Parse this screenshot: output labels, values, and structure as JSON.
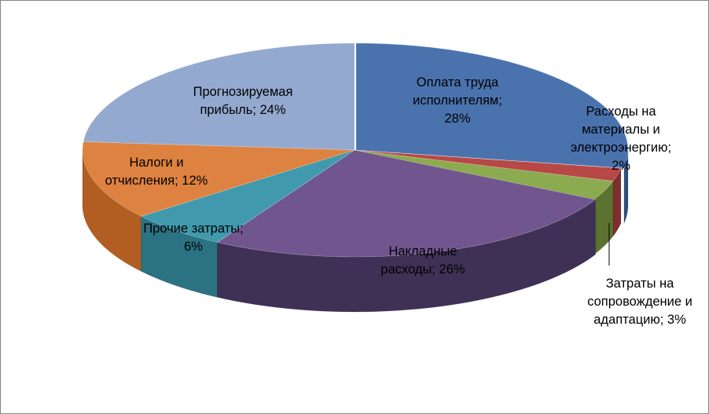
{
  "chart_data": {
    "type": "pie",
    "title": "",
    "style": "3d-exploded",
    "slices": [
      {
        "name": "Оплата труда исполнителям",
        "value": 28,
        "label_lines": [
          "Оплата труда",
          "исполнителям;",
          "28%"
        ],
        "color": "#4A73AE",
        "side": "#304E7C"
      },
      {
        "name": "Расходы на материалы и электроэнергию",
        "value": 2,
        "label_lines": [
          "Расходы на",
          "материалы и",
          "электроэнергию;",
          "2%"
        ],
        "color": "#B84845",
        "side": "#7E2E2C"
      },
      {
        "name": "Затраты на сопровождение и адаптацию",
        "value": 3,
        "label_lines": [
          "Затраты на",
          "сопровождение и",
          "адаптацию; 3%"
        ],
        "color": "#8CAA4F",
        "side": "#5B7230"
      },
      {
        "name": "Накладные расходы",
        "value": 26,
        "label_lines": [
          "Накладные",
          "расходы; 26%"
        ],
        "color": "#70558F",
        "side": "#3F3156"
      },
      {
        "name": "Прочие затраты",
        "value": 6,
        "label_lines": [
          "Прочие затраты;",
          "6%"
        ],
        "color": "#4099AD",
        "side": "#2B7283"
      },
      {
        "name": "Налоги и отчисления",
        "value": 12,
        "label_lines": [
          "Налоги и",
          "отчисления; 12%"
        ],
        "color": "#DD8240",
        "side": "#B25E22"
      },
      {
        "name": "Прогнозируемая прибыль",
        "value": 24,
        "label_lines": [
          "Прогнозируемая",
          "прибыль; 24%"
        ],
        "color": "#94A9D0",
        "side": "#6E83AB"
      }
    ]
  }
}
